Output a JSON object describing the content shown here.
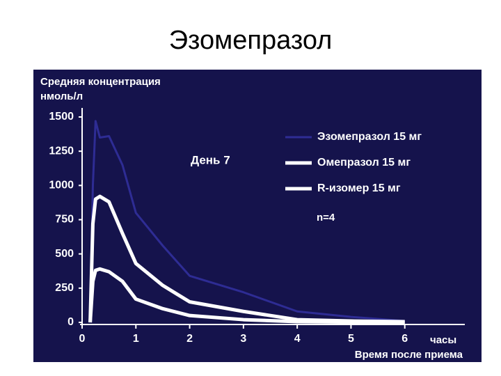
{
  "chart_data": {
    "type": "line",
    "title": "Эзомепразол",
    "ylabel": [
      "Средняя концентрация",
      "нмоль/л"
    ],
    "xlabel": "Время после приема",
    "xunit": "часы",
    "annotations": [
      "День 7",
      "n=4"
    ],
    "x": [
      0.15,
      0.2,
      0.25,
      0.33,
      0.5,
      0.75,
      1,
      1.5,
      2,
      3,
      4,
      5,
      6
    ],
    "series": [
      {
        "name": "Эзомепразол 15 мг",
        "color": "#2e2c94",
        "values": [
          0,
          1000,
          1470,
          1350,
          1360,
          1150,
          800,
          560,
          340,
          220,
          80,
          40,
          10
        ]
      },
      {
        "name": "Омепразол 15 мг",
        "color": "#ffffff",
        "values": [
          0,
          720,
          900,
          920,
          880,
          650,
          430,
          270,
          150,
          80,
          20,
          10,
          5
        ]
      },
      {
        "name": "R-изомер 15 мг",
        "color": "#ffffff",
        "values": [
          0,
          300,
          380,
          390,
          370,
          300,
          170,
          100,
          50,
          20,
          5,
          2,
          0
        ]
      }
    ],
    "xlim": [
      0,
      7
    ],
    "xticks": [
      0,
      1,
      2,
      3,
      4,
      5,
      6
    ],
    "ylim": [
      0,
      1500
    ],
    "yticks": [
      0,
      250,
      500,
      750,
      1000,
      1250,
      1500
    ]
  }
}
